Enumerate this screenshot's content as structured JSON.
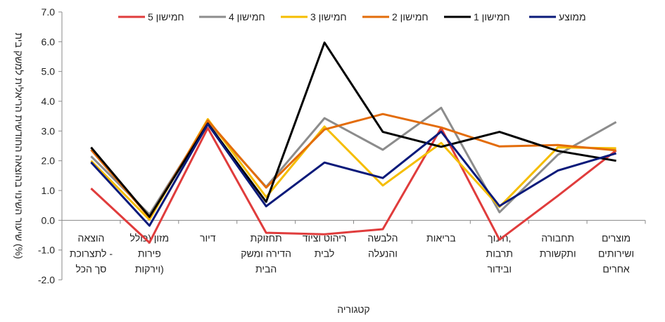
{
  "chart_data": {
    "type": "line",
    "title": "",
    "xlabel": "קטגוריה",
    "ylabel": "שיעור השינוי בהוצאה החודשית הריאלית למשק בית (%)",
    "ylim": [
      -2.0,
      7.0
    ],
    "yticks": [
      "7.0",
      "6.0",
      "5.0",
      "4.0",
      "3.0",
      "2.0",
      "1.0",
      "0.0",
      "-1.0",
      "-2.0"
    ],
    "ytick_values": [
      7,
      6,
      5,
      4,
      3,
      2,
      1,
      0,
      -1,
      -2
    ],
    "grid": false,
    "legend_position": "top",
    "categories": [
      [
        "הוצאה",
        "לתצרוכת -",
        "סך הכל"
      ],
      [
        "מזון (כולל",
        "פירות",
        "וירקות)"
      ],
      [
        "דיור"
      ],
      [
        "תחזוקת",
        "הדירה ומשק",
        "הבית"
      ],
      [
        "ריהוט וציוד",
        "לבית"
      ],
      [
        "הלבשה",
        "והנעלה"
      ],
      [
        "בריאות"
      ],
      [
        "חינוך,",
        "תרבות",
        "ובידור"
      ],
      [
        "תחבורה",
        "ותקשורת"
      ],
      [
        "מוצרים",
        "ושירותים",
        "אחרים"
      ]
    ],
    "series": [
      {
        "name": "חמישון 5",
        "color": "#e03c3c",
        "values": [
          1.07,
          -0.75,
          3.1,
          -0.42,
          -0.47,
          -0.3,
          3.1,
          -0.65,
          0.82,
          2.35
        ]
      },
      {
        "name": "חמישון 4",
        "color": "#8c8c8c",
        "values": [
          2.15,
          0.2,
          3.3,
          1.12,
          3.43,
          2.37,
          3.78,
          0.27,
          2.2,
          3.3
        ]
      },
      {
        "name": "חמישון 3",
        "color": "#f5bd00",
        "values": [
          2.0,
          0.02,
          3.4,
          0.78,
          3.15,
          1.17,
          2.6,
          0.45,
          2.45,
          2.42
        ]
      },
      {
        "name": "חמישון 2",
        "color": "#e36c0a",
        "values": [
          2.37,
          0.1,
          3.35,
          1.1,
          3.05,
          3.57,
          3.12,
          2.48,
          2.53,
          2.35
        ]
      },
      {
        "name": "חמישון 1",
        "color": "#000000",
        "values": [
          2.45,
          0.12,
          3.25,
          0.62,
          5.97,
          2.97,
          2.47,
          2.97,
          2.33,
          2.0
        ]
      },
      {
        "name": "ממוצע",
        "color": "#0a1a7a",
        "values": [
          1.95,
          -0.18,
          3.23,
          0.47,
          1.94,
          1.42,
          2.98,
          0.48,
          1.67,
          2.25
        ]
      }
    ]
  }
}
